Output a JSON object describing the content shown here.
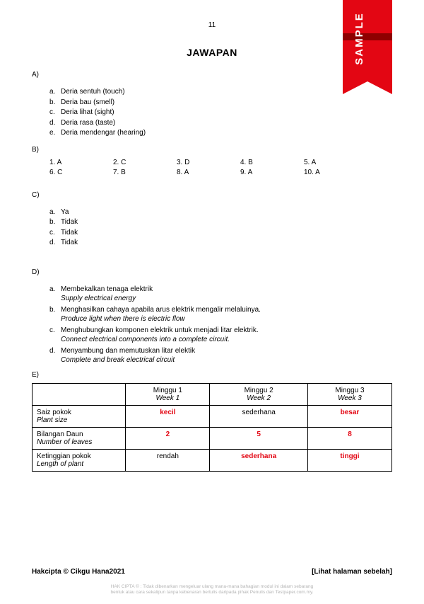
{
  "page_number": "11",
  "title": "JAWAPAN",
  "sample_label": "SAMPLE",
  "colors": {
    "accent_red": "#e30613",
    "ribbon_dark": "#8e0000",
    "fine_text": "#b5b5b5"
  },
  "A": {
    "label": "A)",
    "items": [
      {
        "lt": "a.",
        "text": "Deria sentuh (touch)"
      },
      {
        "lt": "b.",
        "text": "Deria bau (smell)"
      },
      {
        "lt": "c.",
        "text": "Deria lihat (sight)"
      },
      {
        "lt": "d.",
        "text": "Deria rasa (taste)"
      },
      {
        "lt": "e.",
        "text": "Deria mendengar (hearing)"
      }
    ]
  },
  "B": {
    "label": "B)",
    "row1": [
      "1. A",
      "2. C",
      "3. D",
      "4. B",
      "5. A"
    ],
    "row2": [
      "6. C",
      "7. B",
      "8. A",
      "9. A",
      "10. A"
    ]
  },
  "C": {
    "label": "C)",
    "items": [
      {
        "lt": "a.",
        "text": "Ya"
      },
      {
        "lt": "b.",
        "text": "Tidak"
      },
      {
        "lt": "c.",
        "text": "Tidak"
      },
      {
        "lt": "d.",
        "text": "Tidak"
      }
    ]
  },
  "D": {
    "label": "D)",
    "items": [
      {
        "lt": "a.",
        "ms": "Membekalkan tenaga elektrik",
        "en": "Supply electrical energy"
      },
      {
        "lt": "b.",
        "ms": "Menghasilkan cahaya apabila arus elektrik mengalir melaluinya.",
        "en": "Produce light when there is electric flow"
      },
      {
        "lt": "c.",
        "ms": "Menghubungkan komponen elektrik untuk menjadi litar elektrik.",
        "en": "Connect electrical components into a complete circuit."
      },
      {
        "lt": "d.",
        "ms": "Menyambung dan memutuskan litar elektik",
        "en": "Complete and break electrical circuit"
      }
    ]
  },
  "E": {
    "label": "E)",
    "head": [
      {
        "ms": "Minggu 1",
        "en": "Week 1"
      },
      {
        "ms": "Minggu 2",
        "en": "Week 2"
      },
      {
        "ms": "Minggu 3",
        "en": "Week 3"
      }
    ],
    "rows": [
      {
        "label_ms": "Saiz pokok",
        "label_en": "Plant size",
        "cells": [
          {
            "v": "kecil",
            "style": "red"
          },
          {
            "v": "sederhana",
            "style": ""
          },
          {
            "v": "besar",
            "style": "red"
          }
        ]
      },
      {
        "label_ms": "Bilangan Daun",
        "label_en": "Number of leaves",
        "cells": [
          {
            "v": "2",
            "style": "red"
          },
          {
            "v": "5",
            "style": "red"
          },
          {
            "v": "8",
            "style": "red"
          }
        ]
      },
      {
        "label_ms": "Ketinggian pokok",
        "label_en": "Length of plant",
        "cells": [
          {
            "v": "rendah",
            "style": ""
          },
          {
            "v": "sederhana",
            "style": "red"
          },
          {
            "v": "tinggi",
            "style": "red"
          }
        ]
      }
    ]
  },
  "footer": {
    "left": "Hakcipta © Cikgu Hana2021",
    "right": "[Lihat halaman sebelah]"
  },
  "fineprint": {
    "l1": "HAK CIPTA © : Tidak dibenarkan mengeluar ulang mana-mana bahagian modul ini dalam sebarang",
    "l2": "bentuk atau cara sekalipun tanpa kebenaran bertulis daripada pihak Penulis dan Testpaper.com.my."
  }
}
